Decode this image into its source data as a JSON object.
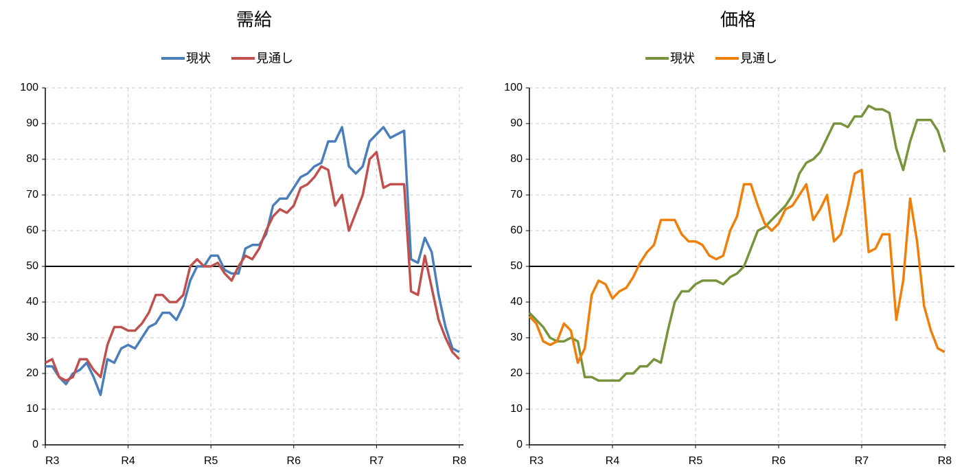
{
  "chart_data": [
    {
      "type": "line",
      "title": "需給",
      "x": [
        0,
        1,
        2,
        3,
        4,
        5,
        6,
        7,
        8,
        9,
        10,
        11,
        12,
        13,
        14,
        15,
        16,
        17,
        18,
        19,
        20,
        21,
        22,
        23,
        24,
        25,
        26,
        27,
        28,
        29,
        30,
        31,
        32,
        33,
        34,
        35,
        36,
        37,
        38,
        39,
        40,
        41,
        42,
        43,
        44,
        45,
        46,
        47,
        48,
        49,
        50,
        51,
        52,
        53,
        54,
        55,
        56,
        57,
        58,
        59,
        60
      ],
      "xlim": [
        0,
        60.6
      ],
      "xticks": [
        {
          "value": 0,
          "label": "R3"
        },
        {
          "value": 12,
          "label": "R4"
        },
        {
          "value": 24,
          "label": "R5"
        },
        {
          "value": 36,
          "label": "R6"
        },
        {
          "value": 48,
          "label": "R7"
        },
        {
          "value": 60,
          "label": "R8"
        }
      ],
      "ylim": [
        0,
        100
      ],
      "yticks": [
        0,
        10,
        20,
        30,
        40,
        50,
        60,
        70,
        80,
        90,
        100
      ],
      "grid": true,
      "reference_line": 50,
      "series": [
        {
          "name": "現状",
          "color": "#4a7ebb",
          "values": [
            22,
            22,
            19,
            17,
            20,
            21,
            23,
            19,
            14,
            24,
            23,
            27,
            28,
            27,
            30,
            33,
            34,
            37,
            37,
            35,
            39,
            46,
            50,
            50,
            53,
            53,
            49,
            48,
            48,
            55,
            56,
            56,
            59,
            67,
            69,
            69,
            72,
            75,
            76,
            78,
            79,
            85,
            85,
            89,
            78,
            76,
            78,
            85,
            87,
            89,
            86,
            87,
            88,
            52,
            51,
            58,
            54,
            42,
            33,
            27,
            26
          ]
        },
        {
          "name": "見通し",
          "color": "#c0504d",
          "values": [
            23,
            24,
            19,
            18,
            19,
            24,
            24,
            21,
            19,
            28,
            33,
            33,
            32,
            32,
            34,
            37,
            42,
            42,
            40,
            40,
            42,
            50,
            52,
            50,
            50,
            51,
            48,
            46,
            50,
            53,
            52,
            55,
            60,
            64,
            66,
            65,
            67,
            72,
            73,
            75,
            78,
            77,
            67,
            70,
            60,
            65,
            70,
            80,
            82,
            72,
            73,
            73,
            73,
            43,
            42,
            53,
            44,
            35,
            30,
            26,
            24
          ]
        }
      ]
    },
    {
      "type": "line",
      "title": "価格",
      "x": [
        0,
        1,
        2,
        3,
        4,
        5,
        6,
        7,
        8,
        9,
        10,
        11,
        12,
        13,
        14,
        15,
        16,
        17,
        18,
        19,
        20,
        21,
        22,
        23,
        24,
        25,
        26,
        27,
        28,
        29,
        30,
        31,
        32,
        33,
        34,
        35,
        36,
        37,
        38,
        39,
        40,
        41,
        42,
        43,
        44,
        45,
        46,
        47,
        48,
        49,
        50,
        51,
        52,
        53,
        54,
        55,
        56,
        57,
        58,
        59,
        60
      ],
      "xlim": [
        0,
        60.2
      ],
      "xticks": [
        {
          "value": 0,
          "label": "R3"
        },
        {
          "value": 12,
          "label": "R4"
        },
        {
          "value": 24,
          "label": "R5"
        },
        {
          "value": 36,
          "label": "R6"
        },
        {
          "value": 48,
          "label": "R7"
        },
        {
          "value": 60,
          "label": "R8"
        }
      ],
      "ylim": [
        0,
        100
      ],
      "yticks": [
        0,
        10,
        20,
        30,
        40,
        50,
        60,
        70,
        80,
        90,
        100
      ],
      "grid": true,
      "reference_line": 50,
      "series": [
        {
          "name": "現状",
          "color": "#77933c",
          "values": [
            37,
            35,
            33,
            30,
            29,
            29,
            30,
            29,
            19,
            19,
            18,
            18,
            18,
            18,
            20,
            20,
            22,
            22,
            24,
            23,
            32,
            40,
            43,
            43,
            45,
            46,
            46,
            46,
            45,
            47,
            48,
            50,
            55,
            60,
            61,
            63,
            65,
            67,
            70,
            76,
            79,
            80,
            82,
            86,
            90,
            90,
            89,
            92,
            92,
            95,
            94,
            94,
            93,
            83,
            77,
            85,
            91,
            91,
            91,
            88,
            82
          ]
        },
        {
          "name": "見通し",
          "color": "#f07f09",
          "values": [
            36,
            34,
            29,
            28,
            29,
            34,
            32,
            23,
            27,
            42,
            46,
            45,
            41,
            43,
            44,
            47,
            51,
            54,
            56,
            63,
            63,
            63,
            59,
            57,
            57,
            56,
            53,
            52,
            53,
            60,
            64,
            73,
            73,
            67,
            62,
            60,
            62,
            66,
            67,
            70,
            73,
            63,
            66,
            70,
            57,
            59,
            67,
            76,
            77,
            54,
            55,
            59,
            59,
            35,
            46,
            69,
            57,
            39,
            32,
            27,
            26
          ]
        }
      ]
    }
  ]
}
